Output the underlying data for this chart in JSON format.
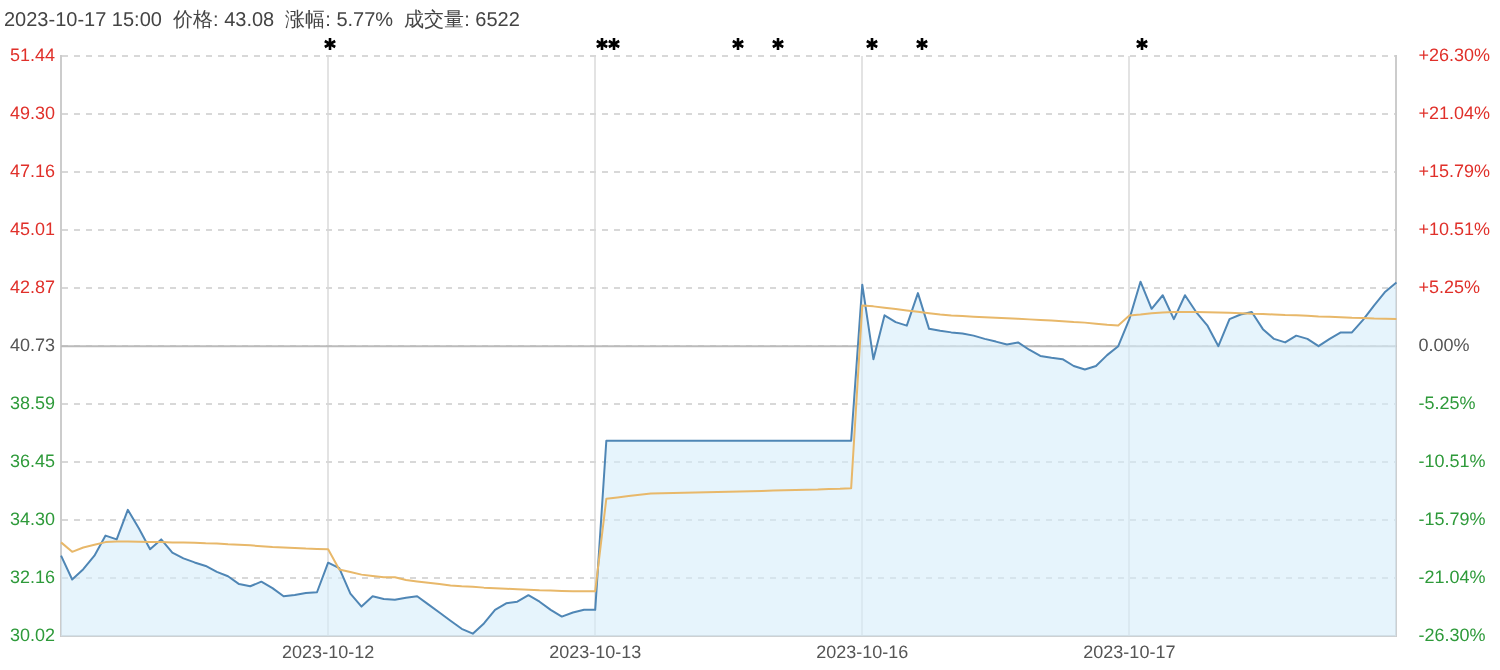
{
  "chart_data": {
    "type": "area",
    "title": "2023-10-17 15:00  价格: 43.08  涨幅: 5.77%  成交量: 6522",
    "categories": [
      null,
      null,
      null,
      null,
      null,
      null,
      null,
      null,
      null,
      null,
      null,
      null,
      null,
      null,
      null,
      null,
      null,
      null,
      null,
      null,
      null,
      null,
      null,
      null,
      "2023-10-12",
      null,
      null,
      null,
      null,
      null,
      null,
      null,
      null,
      null,
      null,
      null,
      null,
      null,
      null,
      null,
      null,
      null,
      null,
      null,
      null,
      null,
      null,
      null,
      "2023-10-13",
      null,
      null,
      null,
      null,
      null,
      null,
      null,
      null,
      null,
      null,
      null,
      null,
      null,
      null,
      null,
      null,
      null,
      null,
      null,
      null,
      null,
      null,
      null,
      "2023-10-16",
      null,
      null,
      null,
      null,
      null,
      null,
      null,
      null,
      null,
      null,
      null,
      null,
      null,
      null,
      null,
      null,
      null,
      null,
      null,
      null,
      null,
      null,
      null,
      "2023-10-17",
      null,
      null,
      null,
      null,
      null,
      null,
      null,
      null,
      null,
      null,
      null,
      null,
      null,
      null,
      null,
      null,
      null,
      null,
      null,
      null,
      null,
      null,
      null,
      null
    ],
    "ylim": [
      30.02,
      51.44
    ],
    "yticks": [
      30.02,
      32.16,
      {
        "value": 34.3,
        "label": "34.30"
      },
      36.45,
      38.59,
      40.73,
      42.87,
      45.01,
      47.16,
      {
        "value": 49.3,
        "label": "49.30"
      },
      51.44
    ],
    "y2lim": [
      -26.3,
      26.3
    ],
    "y2ticks": [
      {
        "value": -26.3,
        "label": "-26.30%"
      },
      {
        "value": -21.04,
        "label": "-21.04%"
      },
      {
        "value": -15.79,
        "label": "-15.79%"
      },
      {
        "value": -10.51,
        "label": "-10.51%"
      },
      {
        "value": -5.25,
        "label": "-5.25%"
      },
      {
        "value": 0,
        "label": "0.00%"
      },
      {
        "value": 5.25,
        "label": "+5.25%"
      },
      {
        "value": 10.51,
        "label": "+10.51%"
      },
      {
        "value": 15.79,
        "label": "+15.79%"
      },
      {
        "value": 21.04,
        "label": "+21.04%"
      },
      {
        "value": 26.3,
        "label": "+26.30%"
      }
    ],
    "ref_lines": [
      {
        "axis": "y",
        "value": 40.73,
        "color": "#bbbbbb"
      }
    ],
    "grid": true,
    "marker": "none",
    "series": [
      {
        "color": "#4f86b5",
        "values": [
          33.0,
          32.12,
          32.5,
          33.0,
          33.74,
          33.6,
          34.69,
          34.0,
          33.24,
          33.6,
          33.11,
          32.9,
          32.75,
          32.62,
          32.4,
          32.24,
          31.95,
          31.87,
          32.04,
          31.8,
          31.5,
          31.55,
          31.62,
          31.65,
          32.74,
          32.54,
          31.6,
          31.12,
          31.5,
          31.4,
          31.37,
          31.45,
          31.5,
          31.2,
          30.9,
          30.6,
          30.3,
          30.12,
          30.5,
          31.0,
          31.24,
          31.3,
          31.54,
          31.3,
          31.0,
          30.75,
          30.9,
          31.0,
          31.0,
          37.24,
          37.24,
          37.24,
          37.24,
          37.24,
          37.24,
          37.24,
          37.24,
          37.24,
          37.24,
          37.24,
          37.24,
          37.24,
          37.24,
          37.24,
          37.24,
          37.24,
          37.24,
          37.24,
          37.24,
          37.24,
          37.24,
          37.24,
          43.0,
          40.25,
          41.87,
          41.62,
          41.49,
          42.69,
          41.37,
          41.3,
          41.24,
          41.2,
          41.12,
          41.0,
          40.9,
          40.79,
          40.87,
          40.6,
          40.37,
          40.3,
          40.25,
          40.0,
          39.87,
          40.0,
          40.4,
          40.73,
          41.73,
          43.11,
          42.11,
          42.61,
          41.73,
          42.61,
          41.99,
          41.5,
          40.73,
          41.73,
          41.9,
          41.99,
          41.36,
          41.0,
          40.87,
          41.12,
          41.0,
          40.73,
          41.0,
          41.24,
          41.24,
          41.7,
          42.24,
          42.74,
          43.08
        ]
      },
      {
        "type": "line",
        "color": "#e8b86a",
        "values": [
          33.49,
          33.14,
          33.3,
          33.4,
          33.5,
          33.52,
          33.52,
          33.51,
          33.5,
          33.5,
          33.49,
          33.49,
          33.48,
          33.46,
          33.45,
          33.42,
          33.4,
          33.38,
          33.35,
          33.32,
          33.3,
          33.28,
          33.26,
          33.25,
          33.24,
          32.49,
          32.4,
          32.3,
          32.25,
          32.2,
          32.2,
          32.1,
          32.05,
          32.0,
          31.95,
          31.9,
          31.87,
          31.85,
          31.82,
          31.8,
          31.78,
          31.76,
          31.74,
          31.72,
          31.71,
          31.7,
          31.69,
          31.69,
          31.69,
          35.1,
          35.15,
          35.2,
          35.25,
          35.29,
          35.3,
          35.31,
          35.32,
          35.33,
          35.34,
          35.35,
          35.36,
          35.37,
          35.38,
          35.39,
          35.4,
          35.41,
          35.42,
          35.43,
          35.44,
          35.46,
          35.47,
          35.49,
          42.23,
          42.2,
          42.15,
          42.1,
          42.05,
          42.0,
          41.95,
          41.9,
          41.86,
          41.84,
          41.82,
          41.8,
          41.78,
          41.76,
          41.74,
          41.72,
          41.7,
          41.68,
          41.65,
          41.62,
          41.6,
          41.56,
          41.52,
          41.49,
          41.86,
          41.9,
          41.95,
          41.97,
          41.99,
          41.99,
          41.99,
          41.98,
          41.97,
          41.96,
          41.95,
          41.93,
          41.92,
          41.9,
          41.88,
          41.87,
          41.85,
          41.83,
          41.82,
          41.8,
          41.78,
          41.77,
          41.75,
          41.74,
          41.73
        ]
      }
    ]
  }
}
